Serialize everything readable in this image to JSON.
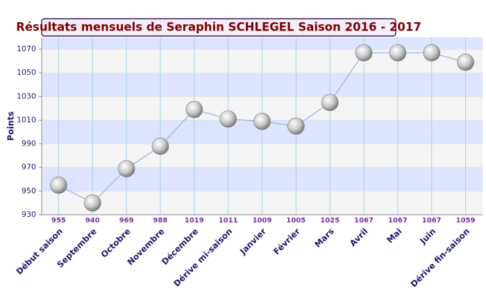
{
  "chart_data": {
    "type": "line",
    "title": "Résultats mensuels de Seraphin SCHLEGEL Saison 2016 - 2017",
    "y_label": "Points",
    "categories": [
      "Début saison",
      "Septembre",
      "Octobre",
      "Novembre",
      "Décembre",
      "Dérive mi-saison",
      "Janvier",
      "Février",
      "Mars",
      "Avril",
      "Mai",
      "Juin",
      "Dérive fin-saison"
    ],
    "values": [
      955,
      940,
      969,
      988,
      1019,
      1011,
      1009,
      1005,
      1025,
      1067,
      1067,
      1067,
      1059
    ],
    "color": "#8ab4e8",
    "ylim": [
      930,
      1080
    ],
    "yticks": [
      930,
      950,
      970,
      990,
      1010,
      1030,
      1050,
      1070
    ],
    "grid": true
  }
}
